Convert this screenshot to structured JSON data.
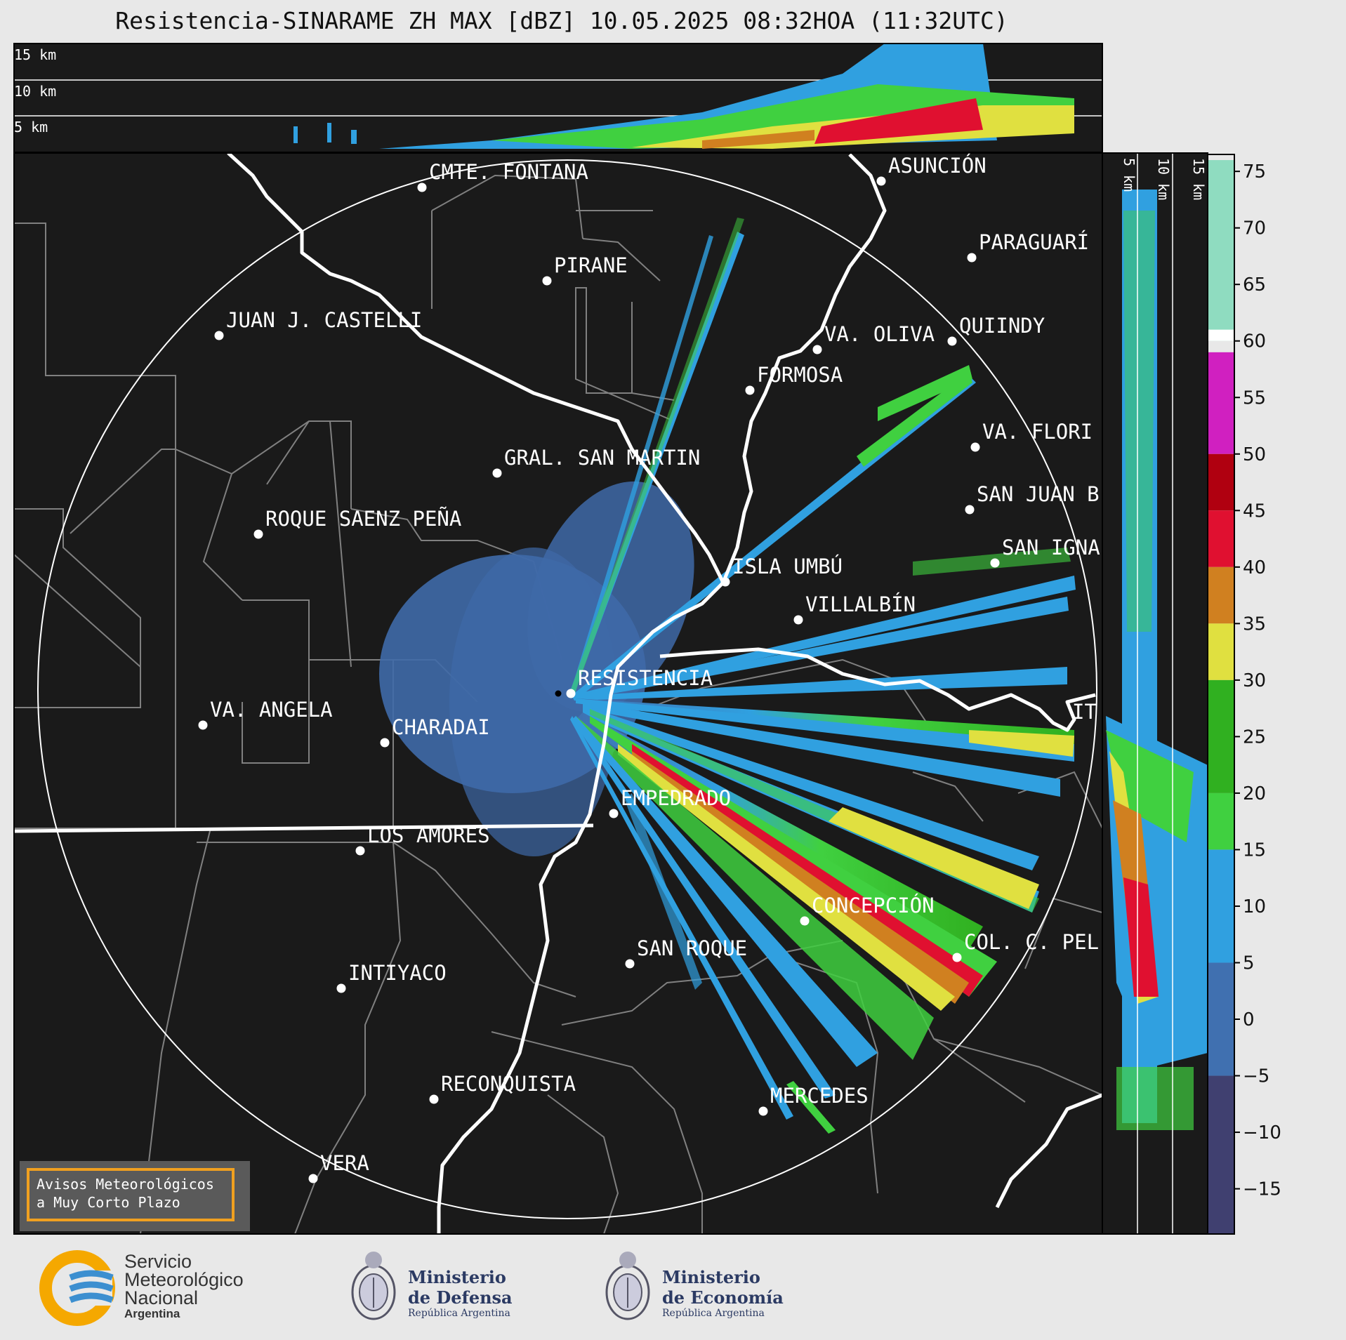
{
  "title": "Resistencia-SINARAME ZH MAX [dBZ] 10.05.2025 08:32HOA (11:32UTC)",
  "height_labels": {
    "top": [
      "15 km",
      "10 km",
      "5 km"
    ],
    "right": [
      "5 km",
      "10 km",
      "15 km"
    ]
  },
  "cities": [
    {
      "name": "CMTE. FONTANA"
    },
    {
      "name": "ASUNCIÓN"
    },
    {
      "name": "PIRANE"
    },
    {
      "name": "PARAGUARÍ"
    },
    {
      "name": "JUAN J. CASTELLI"
    },
    {
      "name": "VA. OLIVA"
    },
    {
      "name": "QUIINDY"
    },
    {
      "name": "FORMOSA"
    },
    {
      "name": "VA. FLORI"
    },
    {
      "name": "GRAL. SAN MARTIN"
    },
    {
      "name": "SAN JUAN B"
    },
    {
      "name": "ROQUE SAENZ PEÑA"
    },
    {
      "name": "SAN IGNA"
    },
    {
      "name": "ISLA UMBÚ"
    },
    {
      "name": "VILLALBÍN"
    },
    {
      "name": "RESISTENCIA"
    },
    {
      "name": "IT"
    },
    {
      "name": "VA. ANGELA"
    },
    {
      "name": "CHARADAI"
    },
    {
      "name": "EMPEDRADO"
    },
    {
      "name": "LOS AMORES"
    },
    {
      "name": "CONCEPCIÓN"
    },
    {
      "name": "COL. C. PEL"
    },
    {
      "name": "SAN ROQUE"
    },
    {
      "name": "INTIYACO"
    },
    {
      "name": "RECONQUISTA"
    },
    {
      "name": "MERCEDES"
    },
    {
      "name": "VERA"
    }
  ],
  "colorbar": {
    "unit": "dBZ",
    "ticks": [
      "75",
      "70",
      "65",
      "60",
      "55",
      "50",
      "45",
      "40",
      "35",
      "30",
      "25",
      "20",
      "15",
      "10",
      "5",
      "0",
      "−5",
      "−10",
      "−15"
    ],
    "stops": [
      {
        "from": 60,
        "to": 76,
        "color": "#8fdcc0"
      },
      {
        "from": 60,
        "to": 61,
        "color": "#ffffff"
      },
      {
        "from": 50,
        "to": 59,
        "color": "#d020c0"
      },
      {
        "from": 45,
        "to": 50,
        "color": "#b00010"
      },
      {
        "from": 40,
        "to": 45,
        "color": "#e01030"
      },
      {
        "from": 35,
        "to": 40,
        "color": "#d08020"
      },
      {
        "from": 30,
        "to": 35,
        "color": "#e0e040"
      },
      {
        "from": 20,
        "to": 30,
        "color": "#30b020"
      },
      {
        "from": 15,
        "to": 20,
        "color": "#40d040"
      },
      {
        "from": 5,
        "to": 15,
        "color": "#30a0e0"
      },
      {
        "from": -5,
        "to": 5,
        "color": "#4070b0"
      },
      {
        "from": -20,
        "to": -5,
        "color": "#404070"
      }
    ]
  },
  "aviso": {
    "line1": "Avisos Meteorológicos",
    "line2": "a Muy Corto Plazo"
  },
  "logos": {
    "smn": {
      "line1": "Servicio",
      "line2": "Meteorológico",
      "line3": "Nacional",
      "line4": "Argentina"
    },
    "defensa": {
      "line1": "Ministerio",
      "line2": "de Defensa",
      "line3": "República Argentina"
    },
    "economia": {
      "line1": "Ministerio",
      "line2": "de Economía",
      "line3": "República Argentina"
    }
  },
  "colors": {
    "map_bg": "#1a1a1a",
    "border_white": "#ffffff",
    "province_gray": "#808080"
  }
}
